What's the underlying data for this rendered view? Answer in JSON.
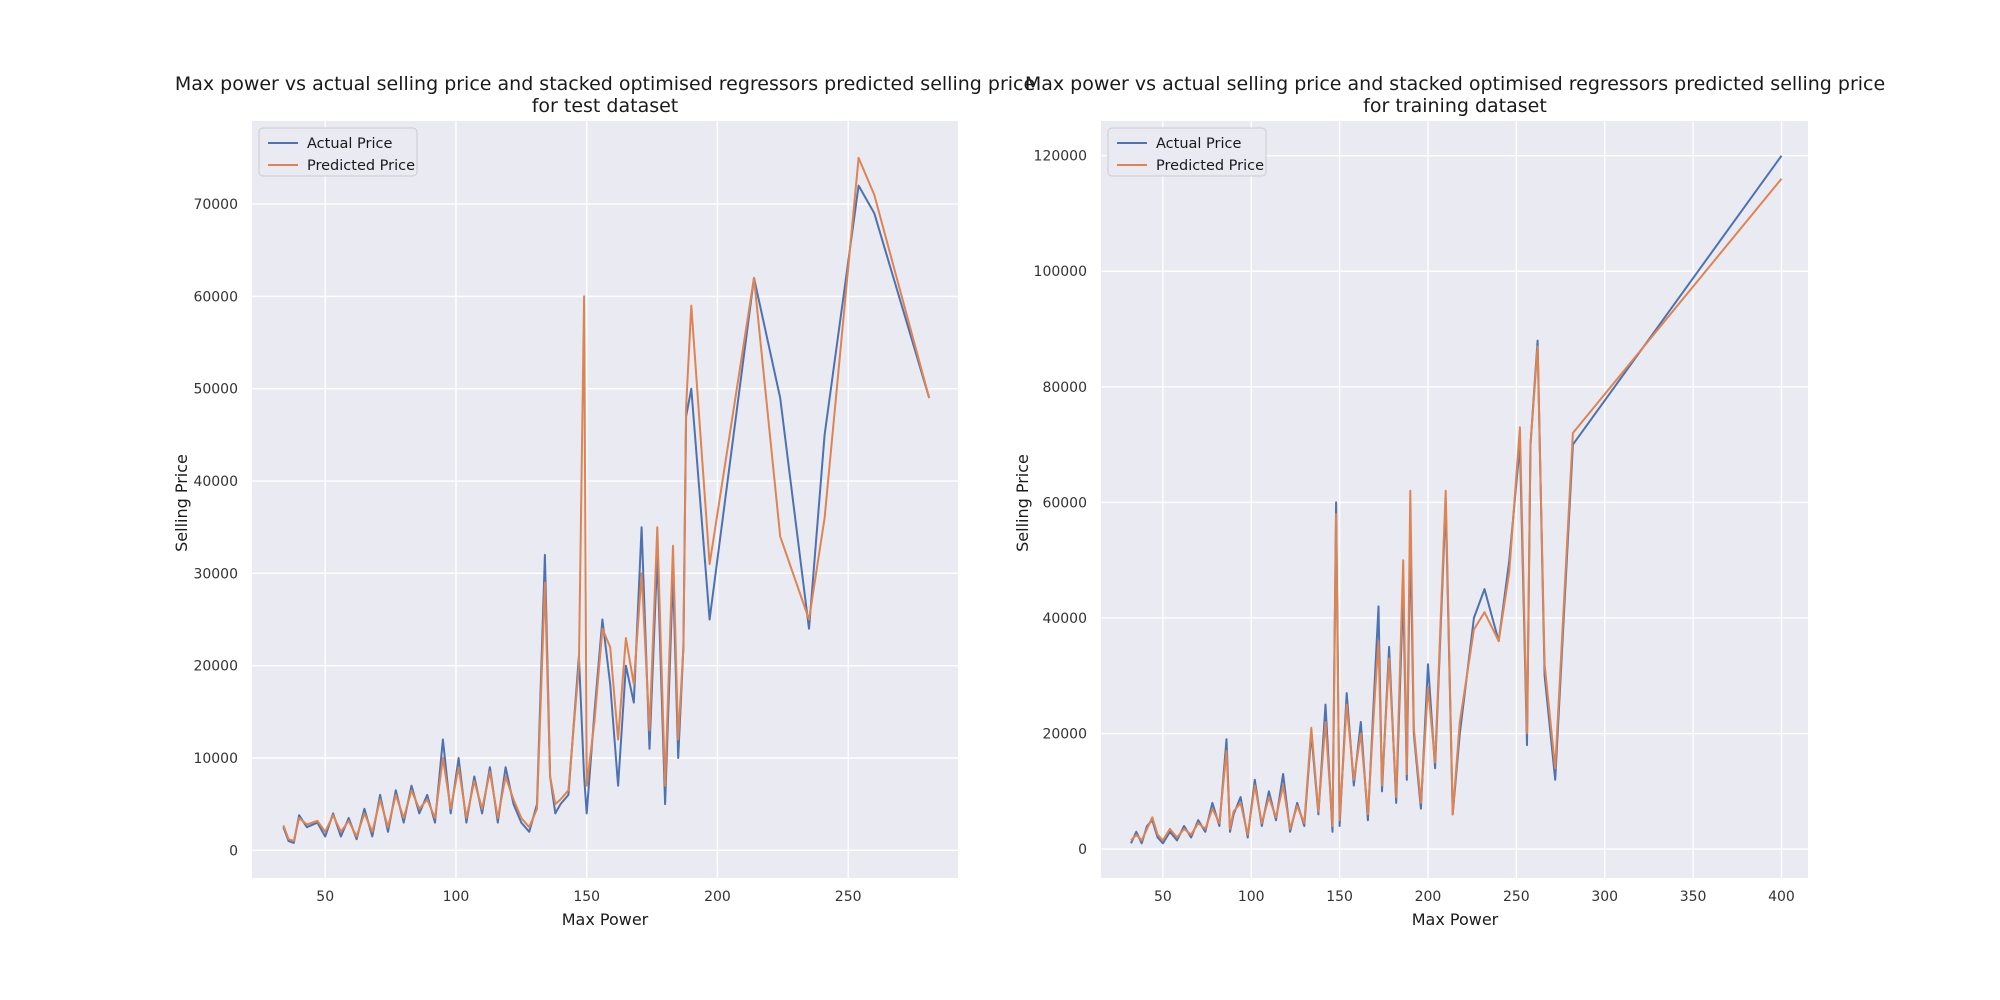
{
  "chart_data": [
    {
      "type": "line",
      "title_lines": [
        "Max power vs actual selling price  and stacked optimised regressors predicted selling price",
        "for test dataset"
      ],
      "xlabel": "Max Power",
      "ylabel": "Selling Price",
      "xlim": [
        22,
        292
      ],
      "ylim": [
        -3000,
        79000
      ],
      "xticks": [
        50,
        100,
        150,
        200,
        250
      ],
      "yticks": [
        0,
        10000,
        20000,
        30000,
        40000,
        50000,
        60000,
        70000
      ],
      "grid": true,
      "legend": {
        "position": "top-left",
        "entries": [
          "Actual Price",
          "Predicted Price"
        ]
      },
      "series": [
        {
          "name": "Actual Price",
          "color": "#4c72b0",
          "x": [
            34,
            36,
            38,
            40,
            43,
            47,
            50,
            53,
            56,
            59,
            62,
            65,
            68,
            71,
            74,
            77,
            80,
            83,
            86,
            89,
            92,
            95,
            98,
            101,
            104,
            107,
            110,
            113,
            116,
            119,
            122,
            125,
            128,
            131,
            134,
            136,
            138,
            140,
            143,
            147,
            149,
            150,
            153,
            156,
            159,
            162,
            165,
            168,
            171,
            174,
            177,
            180,
            183,
            185,
            187,
            188,
            190,
            197,
            214,
            224,
            235,
            241,
            254,
            260,
            281
          ],
          "y": [
            2500,
            1000,
            800,
            3800,
            2500,
            3000,
            1500,
            4000,
            1500,
            3500,
            1200,
            4500,
            1500,
            6000,
            2000,
            6500,
            3000,
            7000,
            4000,
            6000,
            3000,
            12000,
            4000,
            10000,
            3000,
            8000,
            4000,
            9000,
            3000,
            9000,
            5000,
            3000,
            2000,
            5000,
            32000,
            8000,
            4000,
            5000,
            6000,
            21000,
            8000,
            4000,
            15000,
            25000,
            18000,
            7000,
            20000,
            16000,
            35000,
            11000,
            32000,
            5000,
            30000,
            10000,
            22000,
            47000,
            50000,
            25000,
            62000,
            49000,
            24000,
            45000,
            72000,
            69000,
            49000
          ]
        },
        {
          "name": "Predicted Price",
          "color": "#dd8452",
          "x": [
            34,
            36,
            38,
            40,
            43,
            47,
            50,
            53,
            56,
            59,
            62,
            65,
            68,
            71,
            74,
            77,
            80,
            83,
            86,
            89,
            92,
            95,
            98,
            101,
            104,
            107,
            110,
            113,
            116,
            119,
            122,
            125,
            128,
            131,
            134,
            136,
            138,
            140,
            143,
            147,
            149,
            150,
            153,
            156,
            159,
            162,
            165,
            168,
            171,
            174,
            177,
            180,
            183,
            185,
            187,
            188,
            190,
            197,
            214,
            224,
            235,
            241,
            254,
            260,
            281
          ],
          "y": [
            2700,
            1200,
            1000,
            3500,
            2800,
            3200,
            2000,
            3800,
            2000,
            3200,
            1500,
            4000,
            2000,
            5500,
            2500,
            6000,
            3500,
            6500,
            4500,
            5500,
            3500,
            10000,
            4500,
            9000,
            3500,
            7500,
            4500,
            8500,
            3500,
            8000,
            5500,
            3500,
            2500,
            4500,
            29000,
            8000,
            5000,
            5500,
            6500,
            20000,
            60000,
            7000,
            14000,
            24000,
            22000,
            12000,
            23000,
            18000,
            30000,
            13000,
            35000,
            7000,
            33000,
            12000,
            22000,
            48000,
            59000,
            31000,
            62000,
            34000,
            25000,
            36000,
            75000,
            71000,
            49000
          ]
        }
      ]
    },
    {
      "type": "line",
      "title_lines": [
        "Max power vs actual selling price  and stacked optimised regressors predicted selling price",
        "for training dataset"
      ],
      "xlabel": "Max Power",
      "ylabel": "Selling Price",
      "xlim": [
        15,
        415
      ],
      "ylim": [
        -5000,
        126000
      ],
      "xticks": [
        50,
        100,
        150,
        200,
        250,
        300,
        350,
        400
      ],
      "yticks": [
        0,
        20000,
        40000,
        60000,
        80000,
        100000,
        120000
      ],
      "grid": true,
      "legend": {
        "position": "top-left",
        "entries": [
          "Actual Price",
          "Predicted Price"
        ]
      },
      "series": [
        {
          "name": "Actual Price",
          "color": "#4c72b0",
          "x": [
            32,
            35,
            38,
            41,
            44,
            47,
            50,
            54,
            58,
            62,
            66,
            70,
            74,
            78,
            82,
            86,
            88,
            90,
            94,
            98,
            102,
            106,
            110,
            114,
            118,
            122,
            126,
            130,
            134,
            138,
            142,
            146,
            148,
            150,
            154,
            158,
            162,
            166,
            170,
            172,
            174,
            178,
            182,
            186,
            188,
            190,
            192,
            196,
            200,
            204,
            210,
            214,
            218,
            222,
            226,
            232,
            240,
            246,
            252,
            256,
            258,
            262,
            266,
            272,
            282,
            400
          ],
          "y": [
            1000,
            3000,
            1000,
            4000,
            5000,
            2000,
            1000,
            3000,
            1500,
            4000,
            2000,
            5000,
            3000,
            8000,
            4000,
            19000,
            3000,
            6000,
            9000,
            2000,
            12000,
            4000,
            10000,
            5000,
            13000,
            3000,
            8000,
            4000,
            20000,
            6000,
            25000,
            3000,
            60000,
            4000,
            27000,
            11000,
            22000,
            5000,
            30000,
            42000,
            10000,
            35000,
            8000,
            45000,
            12000,
            55000,
            20000,
            7000,
            32000,
            14000,
            60000,
            6000,
            20000,
            30000,
            40000,
            45000,
            36000,
            50000,
            70000,
            18000,
            70000,
            88000,
            30000,
            12000,
            70000,
            120000
          ]
        },
        {
          "name": "Predicted Price",
          "color": "#dd8452",
          "x": [
            32,
            35,
            38,
            41,
            44,
            47,
            50,
            54,
            58,
            62,
            66,
            70,
            74,
            78,
            82,
            86,
            88,
            90,
            94,
            98,
            102,
            106,
            110,
            114,
            118,
            122,
            126,
            130,
            134,
            138,
            142,
            146,
            148,
            150,
            154,
            158,
            162,
            166,
            170,
            172,
            174,
            178,
            182,
            186,
            188,
            190,
            192,
            196,
            200,
            204,
            210,
            214,
            218,
            222,
            226,
            232,
            240,
            246,
            252,
            256,
            258,
            262,
            266,
            272,
            282,
            400
          ],
          "y": [
            1500,
            2500,
            1500,
            3500,
            5500,
            2500,
            1500,
            3500,
            2000,
            3500,
            2500,
            4500,
            3500,
            7000,
            4500,
            17000,
            3500,
            6500,
            8000,
            2500,
            11000,
            4500,
            9000,
            5500,
            11000,
            3500,
            7500,
            4500,
            21000,
            6500,
            22000,
            4000,
            58000,
            5000,
            25000,
            12000,
            20000,
            6000,
            27000,
            36000,
            11000,
            33000,
            9000,
            50000,
            13000,
            62000,
            21000,
            8000,
            28000,
            15000,
            62000,
            6000,
            22000,
            30000,
            38000,
            41000,
            36000,
            48000,
            73000,
            20000,
            70000,
            87000,
            32000,
            14000,
            72000,
            116000
          ]
        }
      ]
    }
  ]
}
